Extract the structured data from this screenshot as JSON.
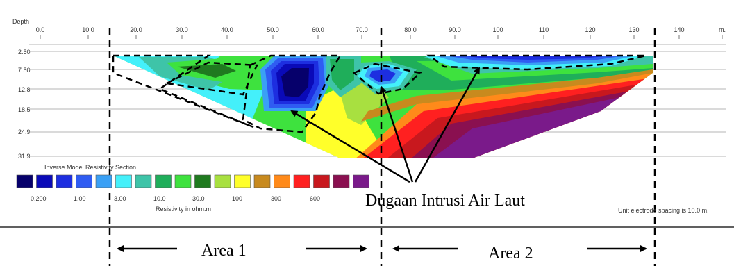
{
  "figure": {
    "depth_label": "Depth",
    "x_ticks": [
      "0.0",
      "10.0",
      "20.0",
      "30.0",
      "40.0",
      "50.0",
      "60.0",
      "70.0",
      "80.0",
      "90.0",
      "100",
      "110",
      "120",
      "130",
      "140"
    ],
    "x_unit": "m.",
    "depth_ticks": [
      "2.50",
      "7.50",
      "12.8",
      "18.5",
      "24.9",
      "31.9"
    ],
    "section_title": "Inverse Model Resistivity Section",
    "legend_colors": [
      "#06006b",
      "#0a0ab8",
      "#1d2ee0",
      "#2f5cf2",
      "#3aa0f5",
      "#44f0fa",
      "#3ec4a8",
      "#1fae5a",
      "#3ee23e",
      "#1f7a1f",
      "#a8e040",
      "#ffff2a",
      "#c88a1e",
      "#ff8a1a",
      "#ff2020",
      "#c8181e",
      "#8a1050",
      "#7a1a8a"
    ],
    "legend_values": [
      "0.200",
      "1.00",
      "3.00",
      "10.0",
      "30.0",
      "100",
      "300",
      "600"
    ],
    "resistivity_label": "Resistivity in ohm.m",
    "spacing_note": "Unit electrode spacing is 10.0 m.",
    "annotation": "Dugaan Intrusi Air Laut",
    "area1_label": "Area 1",
    "area2_label": "Area 2"
  }
}
